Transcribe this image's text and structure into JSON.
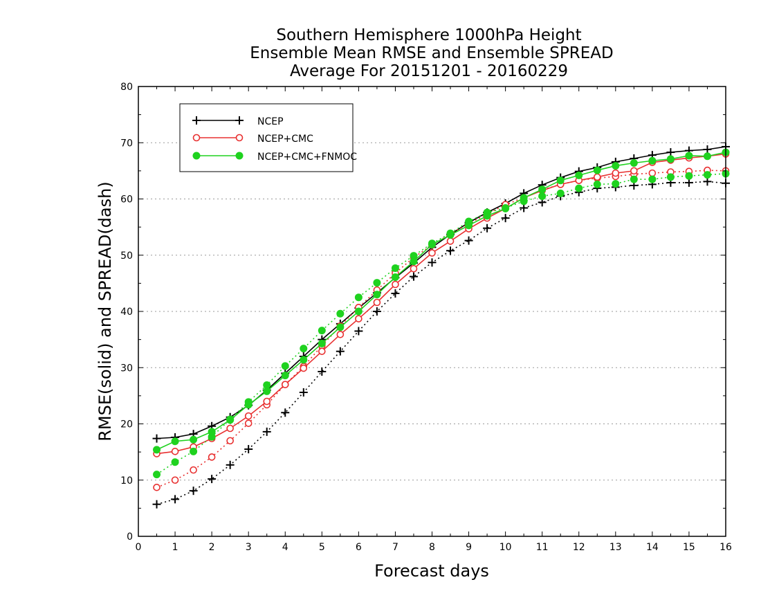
{
  "chart_data": {
    "type": "line",
    "title": [
      "Southern Hemisphere 1000hPa Height",
      "Ensemble Mean RMSE and Ensemble SPREAD",
      "Average For 20151201 - 20160229"
    ],
    "xlabel": "Forecast days",
    "ylabel": "RMSE(solid) and SPREAD(dash)",
    "xlim": [
      0,
      16
    ],
    "ylim": [
      0,
      80
    ],
    "xticks": [
      "0",
      "1",
      "2",
      "3",
      "4",
      "5",
      "6",
      "7",
      "8",
      "9",
      "10",
      "11",
      "12",
      "13",
      "14",
      "15",
      "16"
    ],
    "yticks": [
      "0",
      "10",
      "20",
      "30",
      "40",
      "50",
      "60",
      "70",
      "80"
    ],
    "grid": "horizontal dotted",
    "legend_position": "top-left",
    "x": [
      0.5,
      1,
      1.5,
      2,
      2.5,
      3,
      3.5,
      4,
      4.5,
      5,
      5.5,
      6,
      6.5,
      7,
      7.5,
      8,
      8.5,
      9,
      9.5,
      10,
      10.5,
      11,
      11.5,
      12,
      12.5,
      13,
      13.5,
      14,
      14.5,
      15,
      15.5,
      16
    ],
    "series": [
      {
        "name": "NCEP",
        "color": "#000000",
        "marker": "plus",
        "rmse": [
          17.4,
          17.6,
          18.2,
          19.6,
          21.2,
          23.3,
          26.0,
          29.0,
          32.0,
          35.0,
          37.8,
          40.6,
          43.3,
          46.0,
          48.6,
          51.4,
          53.7,
          55.8,
          57.6,
          59.2,
          61.0,
          62.5,
          63.8,
          64.9,
          65.6,
          66.6,
          67.2,
          67.8,
          68.3,
          68.6,
          68.8,
          69.3
        ],
        "spread": [
          5.7,
          6.6,
          8.1,
          10.2,
          12.7,
          15.5,
          18.6,
          22.0,
          25.6,
          29.3,
          32.9,
          36.5,
          40.0,
          43.2,
          46.2,
          48.7,
          50.8,
          52.6,
          54.8,
          56.6,
          58.4,
          59.4,
          60.5,
          61.2,
          61.9,
          62.1,
          62.4,
          62.6,
          62.9,
          62.9,
          63.1,
          62.8
        ]
      },
      {
        "name": "NCEP+CMC",
        "color": "#e83030",
        "marker": "open-circle",
        "rmse": [
          14.7,
          15.1,
          15.9,
          17.4,
          19.2,
          21.4,
          24.0,
          27.0,
          29.9,
          32.9,
          35.9,
          38.7,
          41.6,
          44.8,
          47.6,
          50.4,
          52.5,
          54.7,
          56.6,
          58.3,
          60.2,
          61.5,
          62.6,
          63.3,
          63.9,
          64.6,
          65.0,
          66.5,
          66.9,
          67.3,
          67.6,
          68.0
        ],
        "spread": [
          8.7,
          10.0,
          11.8,
          14.1,
          17.0,
          20.1,
          23.4,
          27.0,
          30.2,
          33.9,
          37.4,
          40.7,
          43.8,
          46.8,
          49.6,
          51.8,
          53.8,
          55.6,
          57.3,
          59.0,
          60.2,
          61.6,
          62.6,
          63.3,
          63.7,
          64.0,
          64.4,
          64.6,
          64.8,
          64.9,
          65.1,
          65.0
        ]
      },
      {
        "name": "NCEP+CMC+FNMOC",
        "color": "#1fd21f",
        "marker": "filled-circle",
        "rmse": [
          15.4,
          16.9,
          17.2,
          18.6,
          20.7,
          23.4,
          25.8,
          28.6,
          31.4,
          34.3,
          37.2,
          40.0,
          43.0,
          46.1,
          48.9,
          51.9,
          53.6,
          55.3,
          57.0,
          58.3,
          60.2,
          61.7,
          63.3,
          64.2,
          65.1,
          65.9,
          66.4,
          66.8,
          67.1,
          67.7,
          67.6,
          68.3
        ],
        "spread": [
          11.0,
          13.2,
          15.1,
          17.7,
          20.8,
          23.9,
          26.9,
          30.3,
          33.4,
          36.6,
          39.6,
          42.5,
          45.1,
          47.7,
          49.9,
          52.1,
          53.9,
          56.0,
          57.6,
          58.4,
          59.6,
          60.5,
          61.0,
          61.9,
          62.6,
          62.7,
          63.5,
          63.5,
          63.9,
          64.1,
          64.3,
          64.5
        ]
      }
    ]
  }
}
